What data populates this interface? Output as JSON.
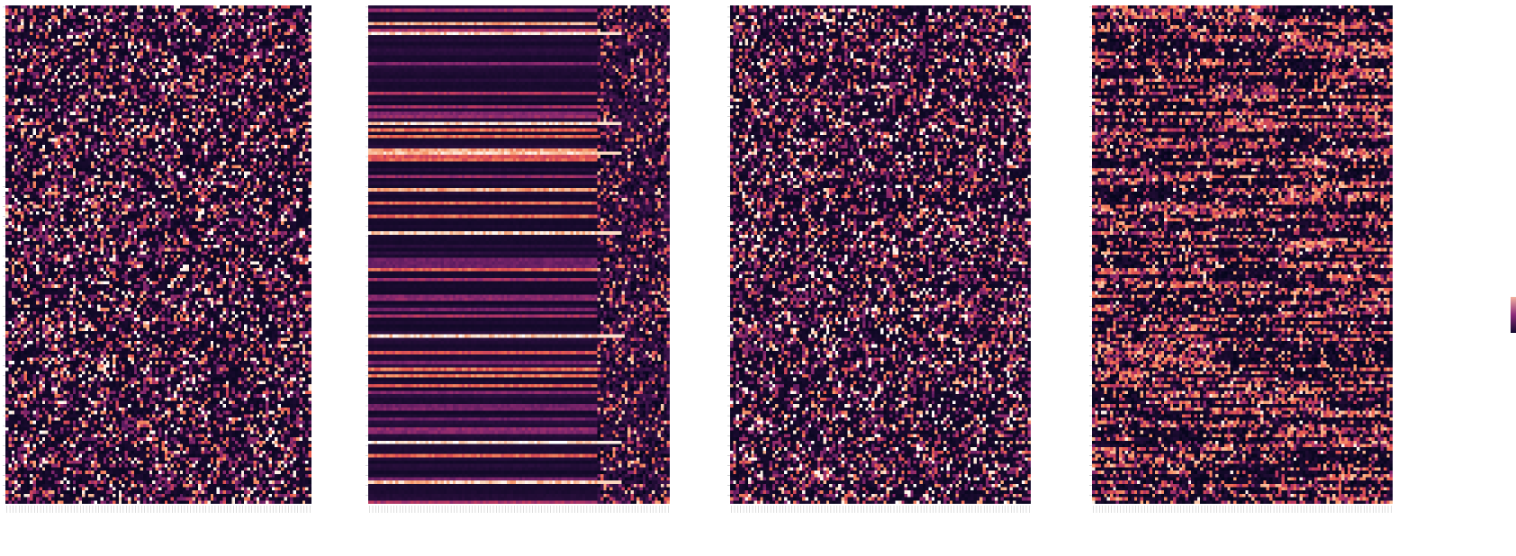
{
  "chart_data": [
    {
      "type": "heatmap",
      "title": "",
      "xlabel": "",
      "ylabel": "",
      "rows": 150,
      "cols": 100,
      "pattern": "sparse-uniform",
      "value_range": [
        0,
        1
      ],
      "grid": false
    },
    {
      "type": "heatmap",
      "title": "",
      "xlabel": "",
      "ylabel": "",
      "rows": 150,
      "cols": 100,
      "pattern": "horizontal-bands",
      "value_range": [
        0,
        1
      ],
      "grid": false
    },
    {
      "type": "heatmap",
      "title": "",
      "xlabel": "",
      "ylabel": "",
      "rows": 150,
      "cols": 100,
      "pattern": "sparse-uniform",
      "value_range": [
        0,
        1
      ],
      "grid": false
    },
    {
      "type": "heatmap",
      "title": "",
      "xlabel": "",
      "ylabel": "",
      "rows": 150,
      "cols": 100,
      "pattern": "clustered-blocks",
      "value_range": [
        0,
        1
      ],
      "grid": false
    }
  ],
  "colormap": [
    "#03051a",
    "#2b0f3e",
    "#5a1a5e",
    "#8c2a6f",
    "#c23b5f",
    "#e85c4f",
    "#f69a6c",
    "#fbd9c0",
    "#ffffff"
  ]
}
